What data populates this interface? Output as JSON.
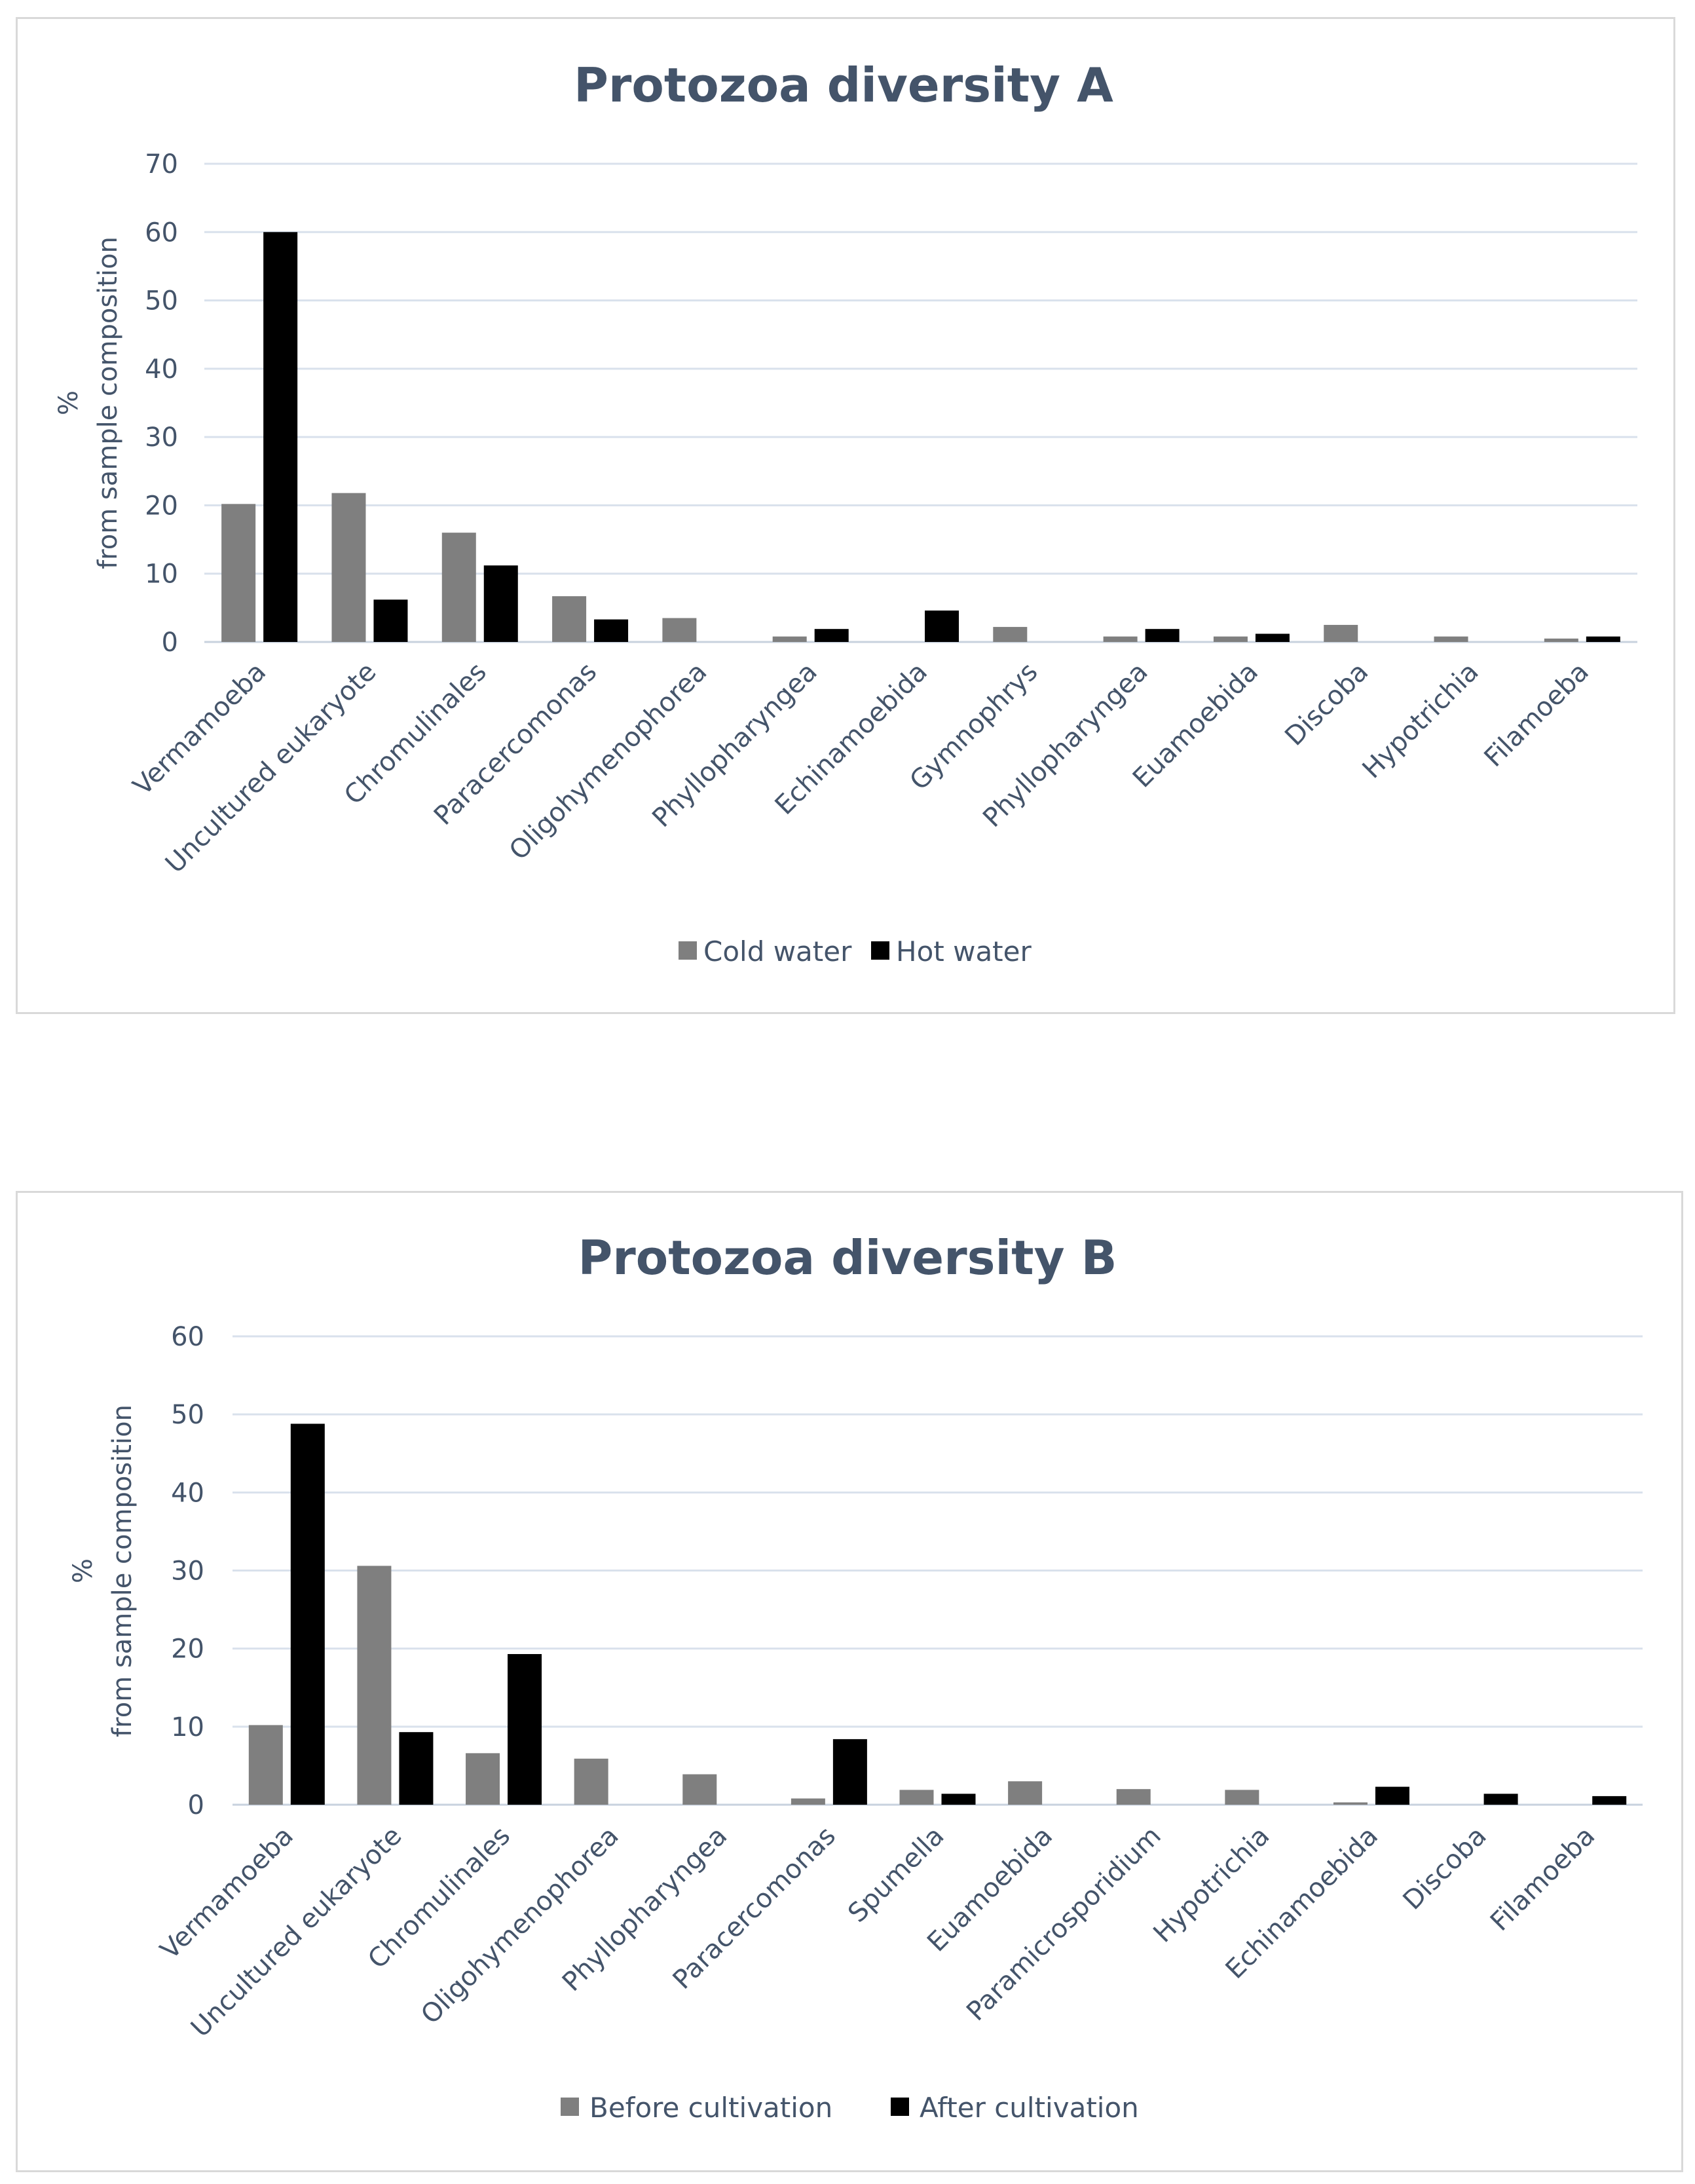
{
  "chart_data": [
    {
      "type": "bar",
      "title": "Protozoa diversity A",
      "ylabel": [
        "%",
        "from sample composition"
      ],
      "ylim": [
        0,
        70
      ],
      "yticks": [
        0,
        10,
        20,
        30,
        40,
        50,
        60,
        70
      ],
      "grid": true,
      "legend_position": "bottom",
      "categories": [
        "Vermamoeba",
        "Uncultured eukaryote",
        "Chromulinales",
        "Paracercomonas",
        "Oligohymenophorea",
        "Phyllopharyngea",
        "Echinamoebida",
        "Gymnophrys",
        "Phyllopharyngea",
        "Euamoebida",
        "Discoba",
        "Hypotrichia",
        "Filamoeba"
      ],
      "series": [
        {
          "name": "Cold water",
          "color": "#7f7f7f",
          "values": [
            20.2,
            21.8,
            16,
            6.7,
            3.5,
            0.8,
            0,
            2.2,
            0.8,
            0.8,
            2.5,
            0.8,
            0.5
          ]
        },
        {
          "name": "Hot water",
          "color": "#000000",
          "values": [
            60,
            6.2,
            11.2,
            3.3,
            0,
            1.9,
            4.6,
            0,
            1.9,
            1.2,
            0,
            0,
            0.8
          ]
        }
      ]
    },
    {
      "type": "bar",
      "title": "Protozoa diversity B",
      "ylabel": [
        "%",
        "from sample composition"
      ],
      "ylim": [
        0,
        60
      ],
      "yticks": [
        0,
        10,
        20,
        30,
        40,
        50,
        60
      ],
      "grid": true,
      "legend_position": "bottom",
      "categories": [
        "Vermamoeba",
        "Uncultured eukaryote",
        "Chromulinales",
        "Oligohymenophorea",
        "Phyllopharyngea",
        "Paracercomonas",
        "Spumella",
        "Euamoebida",
        "Paramicrosporidium",
        "Hypotrichia",
        "Echinamoebida",
        "Discoba",
        "Filamoeba"
      ],
      "series": [
        {
          "name": "Before cultivation",
          "color": "#7f7f7f",
          "values": [
            10.2,
            30.6,
            6.6,
            5.9,
            3.9,
            0.8,
            1.9,
            3,
            2,
            1.9,
            0.3,
            0,
            0
          ]
        },
        {
          "name": "After cultivation",
          "color": "#000000",
          "values": [
            48.8,
            9.3,
            19.3,
            0,
            0,
            8.4,
            1.4,
            0,
            0,
            0,
            2.3,
            1.4,
            1.1
          ]
        }
      ]
    }
  ]
}
